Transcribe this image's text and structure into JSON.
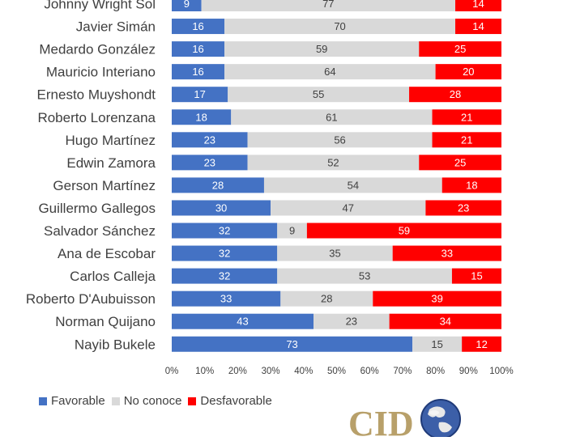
{
  "chart_data": {
    "type": "bar",
    "orientation": "horizontal",
    "stacked": "percent",
    "categories": [
      "Johnny Wright Sol",
      "Javier Simán",
      "Medardo González",
      "Mauricio Interiano",
      "Ernesto Muyshondt",
      "Roberto Lorenzana",
      "Hugo Martínez",
      "Edwin Zamora",
      "Gerson Martínez",
      "Guillermo Gallegos",
      "Salvador Sánchez",
      "Ana de Escobar",
      "Carlos Calleja",
      "Roberto D'Aubuisson",
      "Norman Quijano",
      "Nayib Bukele"
    ],
    "series": [
      {
        "name": "Favorable",
        "color": "#4472c4",
        "label_color": "#ffffff",
        "values": [
          9,
          16,
          16,
          16,
          17,
          18,
          23,
          23,
          28,
          30,
          32,
          32,
          32,
          33,
          43,
          73
        ]
      },
      {
        "name": "No conoce",
        "color": "#d9d9d9",
        "label_color": "#404040",
        "values": [
          77,
          70,
          59,
          64,
          55,
          61,
          56,
          52,
          54,
          47,
          9,
          35,
          53,
          28,
          23,
          15
        ]
      },
      {
        "name": "Desfavorable",
        "color": "#ff0000",
        "label_color": "#ffffff",
        "values": [
          14,
          14,
          25,
          20,
          28,
          21,
          21,
          25,
          18,
          23,
          59,
          33,
          15,
          39,
          34,
          12
        ]
      }
    ],
    "xlim": [
      0,
      100
    ],
    "xticks": [
      "0%",
      "10%",
      "20%",
      "30%",
      "40%",
      "50%",
      "60%",
      "70%",
      "80%",
      "90%",
      "100%"
    ],
    "grid": false,
    "legend_position": "bottom-left"
  },
  "logo": {
    "text": "CID"
  }
}
